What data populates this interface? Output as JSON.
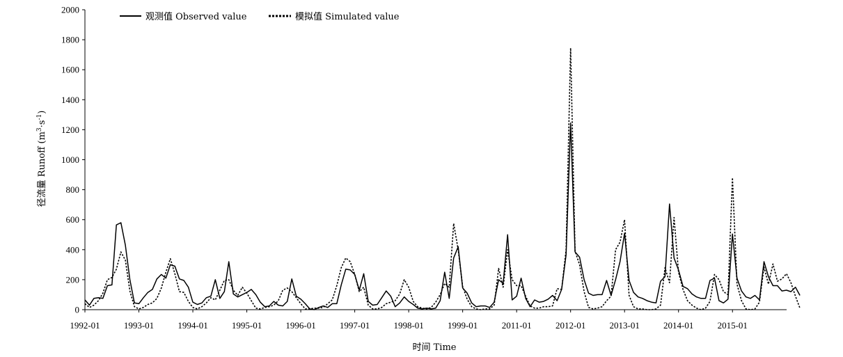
{
  "chart_data": {
    "type": "line",
    "ylabel": "径流量 Runoff (m³·s⁻¹)",
    "ylabel_parts": {
      "prefix": "径流量 Runoff (m",
      "sup1": "3",
      "mid": "·s",
      "sup2": "-1",
      "suffix": ")"
    },
    "xlabel": "时间  Time",
    "ylim": [
      0,
      2000
    ],
    "yticks": [
      0,
      200,
      400,
      600,
      800,
      1000,
      1200,
      1400,
      1600,
      1800,
      2000
    ],
    "x_tick_labels": [
      "1992-01",
      "1993-01",
      "1994-01",
      "1995-01",
      "1996-01",
      "1997-01",
      "1998-01",
      "1999-01",
      "2011-01",
      "2012-01",
      "2013-01",
      "2014-01",
      "2015-01"
    ],
    "months_per_year": 12,
    "grid": false,
    "legend_position": "top-left",
    "series": [
      {
        "name": "观测值 Observed value",
        "style": "solid",
        "color": "#000000",
        "values": [
          65,
          30,
          75,
          80,
          75,
          160,
          165,
          565,
          580,
          430,
          200,
          45,
          40,
          80,
          115,
          135,
          205,
          235,
          210,
          300,
          290,
          205,
          195,
          150,
          50,
          35,
          45,
          80,
          90,
          200,
          75,
          120,
          320,
          105,
          85,
          100,
          115,
          135,
          100,
          50,
          20,
          25,
          55,
          30,
          25,
          55,
          205,
          90,
          70,
          40,
          5,
          0,
          15,
          25,
          15,
          40,
          40,
          165,
          270,
          265,
          235,
          130,
          240,
          55,
          30,
          35,
          80,
          125,
          90,
          20,
          45,
          85,
          55,
          35,
          10,
          5,
          10,
          5,
          10,
          60,
          250,
          75,
          345,
          420,
          145,
          110,
          45,
          20,
          25,
          25,
          15,
          50,
          200,
          175,
          500,
          65,
          90,
          210,
          75,
          20,
          65,
          50,
          55,
          70,
          95,
          60,
          135,
          365,
          1245,
          385,
          350,
          200,
          110,
          95,
          100,
          100,
          195,
          95,
          200,
          320,
          510,
          195,
          115,
          85,
          75,
          60,
          50,
          45,
          190,
          220,
          705,
          345,
          265,
          155,
          140,
          105,
          85,
          75,
          75,
          195,
          210,
          60,
          45,
          70,
          505,
          210,
          125,
          85,
          75,
          95,
          65,
          320,
          220,
          160,
          160,
          125,
          130,
          120,
          150,
          95
        ]
      },
      {
        "name": "模拟值 Simulated value",
        "style": "dashed",
        "color": "#000000",
        "values": [
          40,
          15,
          30,
          60,
          110,
          200,
          215,
          270,
          385,
          330,
          125,
          20,
          5,
          15,
          35,
          45,
          75,
          145,
          250,
          340,
          240,
          120,
          115,
          55,
          15,
          5,
          20,
          45,
          80,
          65,
          130,
          195,
          200,
          130,
          95,
          150,
          110,
          60,
          10,
          5,
          15,
          20,
          30,
          60,
          130,
          145,
          120,
          80,
          40,
          5,
          5,
          10,
          10,
          15,
          40,
          65,
          160,
          280,
          345,
          320,
          235,
          120,
          150,
          30,
          5,
          5,
          15,
          40,
          50,
          60,
          105,
          200,
          150,
          55,
          20,
          10,
          5,
          15,
          50,
          100,
          175,
          150,
          575,
          400,
          155,
          70,
          20,
          5,
          0,
          5,
          5,
          30,
          275,
          150,
          400,
          200,
          160,
          160,
          90,
          25,
          10,
          10,
          20,
          20,
          25,
          140,
          135,
          400,
          1745,
          390,
          300,
          120,
          15,
          5,
          10,
          20,
          60,
          90,
          400,
          450,
          600,
          95,
          20,
          5,
          5,
          0,
          0,
          5,
          30,
          280,
          180,
          615,
          250,
          135,
          60,
          30,
          10,
          0,
          10,
          55,
          235,
          200,
          120,
          100,
          880,
          170,
          60,
          5,
          0,
          5,
          50,
          285,
          170,
          305,
          190,
          205,
          240,
          180,
          90,
          10
        ]
      }
    ]
  }
}
